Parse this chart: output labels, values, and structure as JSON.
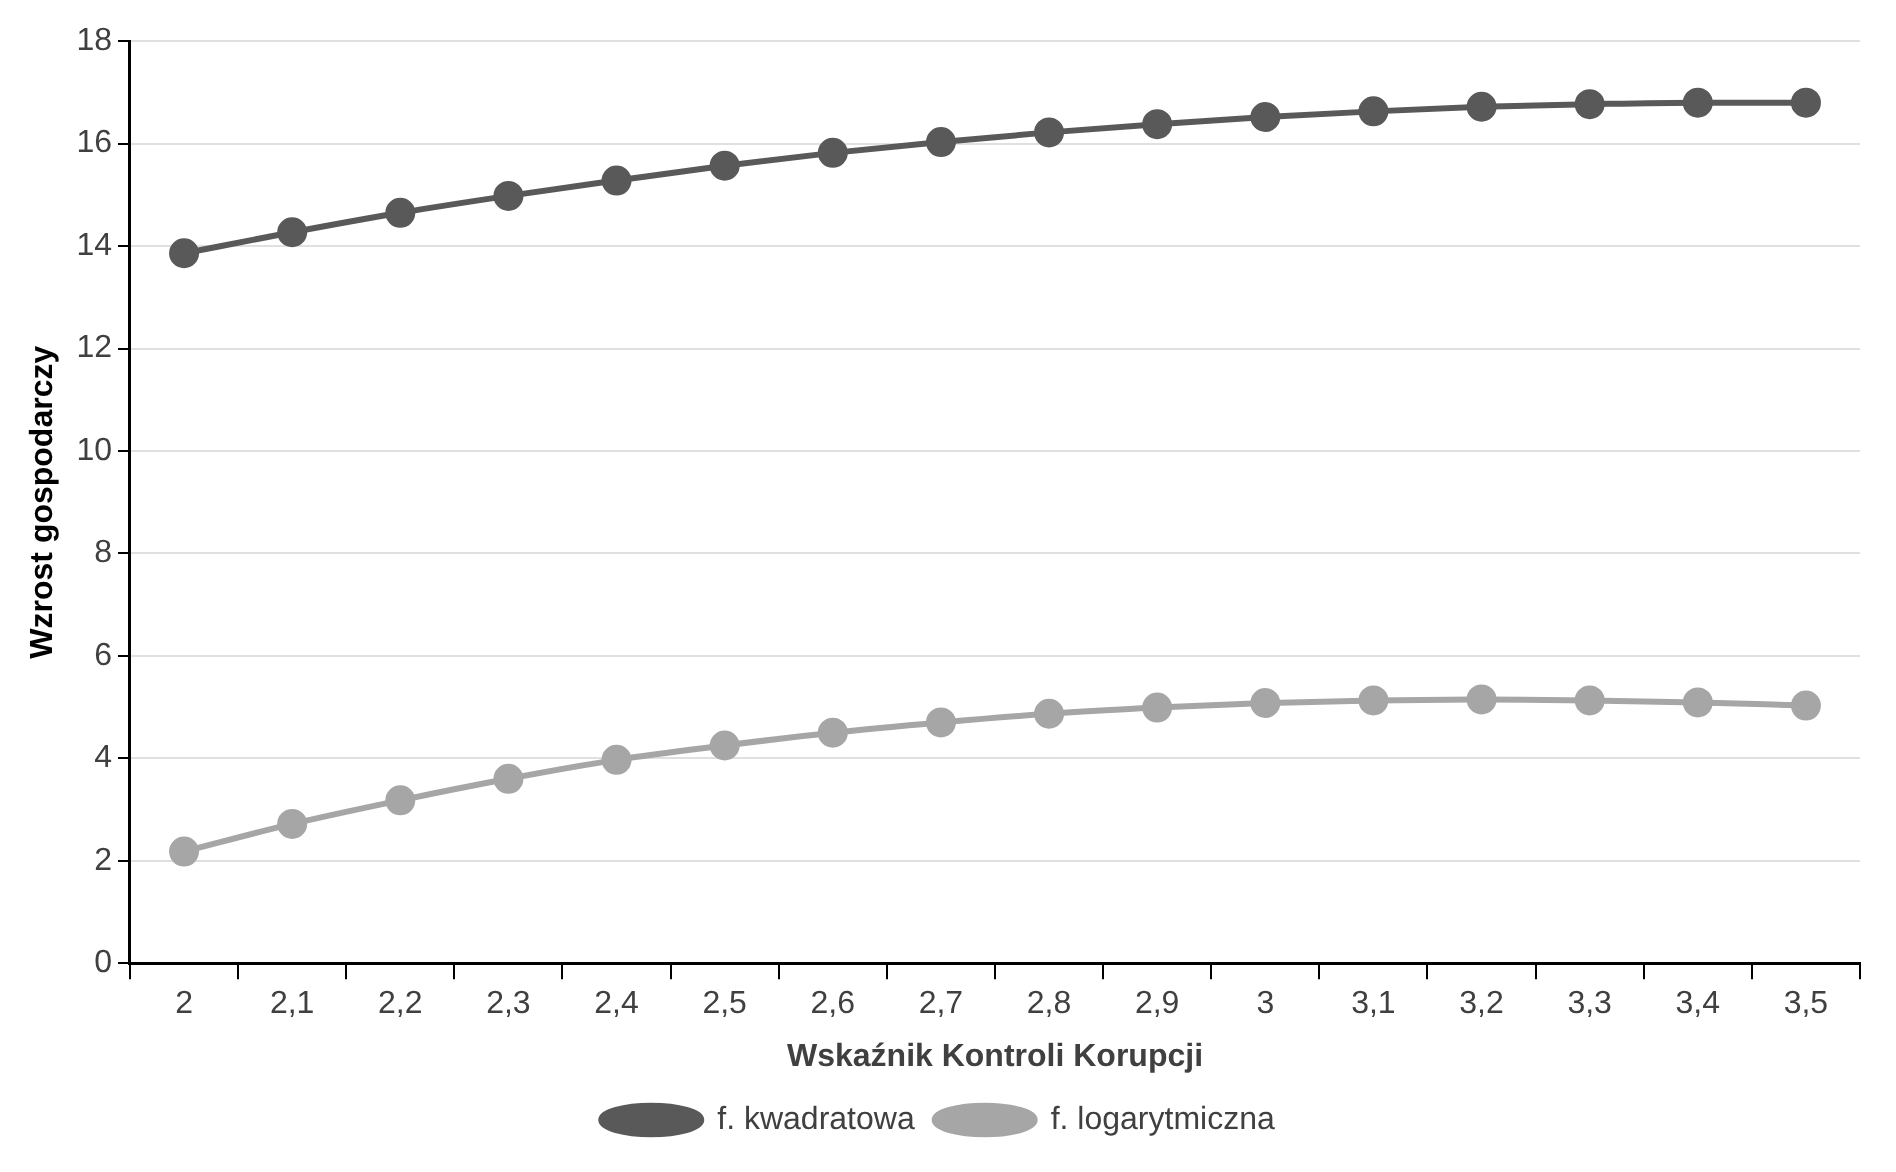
{
  "chart_data": {
    "type": "line",
    "xlabel": "Wskaźnik Kontroli Korupcji",
    "ylabel": "Wzrost gospodarczy",
    "categories": [
      "2",
      "2,1",
      "2,2",
      "2,3",
      "2,4",
      "2,5",
      "2,6",
      "2,7",
      "2,8",
      "2,9",
      "3",
      "3,1",
      "3,2",
      "3,3",
      "3,4",
      "3,5"
    ],
    "series": [
      {
        "name": "f. kwadratowa",
        "color": "#595959",
        "values": [
          13.86,
          14.27,
          14.65,
          14.98,
          15.28,
          15.57,
          15.82,
          16.03,
          16.22,
          16.38,
          16.52,
          16.63,
          16.72,
          16.77,
          16.8,
          16.8
        ]
      },
      {
        "name": "f. logarytmiczna",
        "color": "#a6a6a6",
        "values": [
          2.18,
          2.72,
          3.18,
          3.6,
          3.97,
          4.25,
          4.5,
          4.7,
          4.87,
          4.99,
          5.08,
          5.13,
          5.15,
          5.13,
          5.09,
          5.03
        ]
      }
    ],
    "ylim": [
      0,
      18
    ],
    "yticks": [
      0,
      2,
      4,
      6,
      8,
      10,
      12,
      14,
      16,
      18
    ],
    "grid": "y",
    "legend": "bottom",
    "marker": "circle",
    "line_style": "solid"
  }
}
